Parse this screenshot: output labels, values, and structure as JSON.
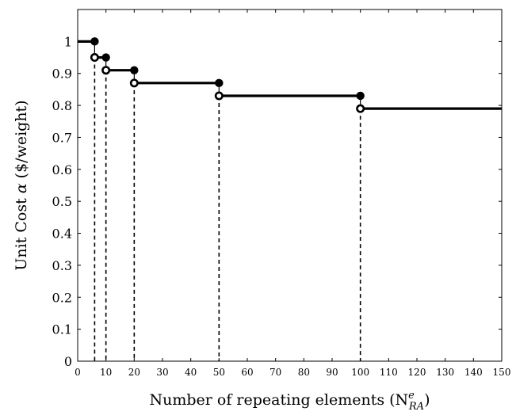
{
  "chart_data": {
    "type": "line",
    "title": "",
    "xlabel": "Number of repeating elements (N",
    "xlabel_sup": "e",
    "xlabel_sub": "RA",
    "xlabel_close": ")",
    "ylabel_prefix": "Unit Cost ",
    "ylabel_symbol": "α",
    "ylabel_suffix": " ($/weight)",
    "xlim": [
      0,
      150
    ],
    "ylim": [
      0,
      1.1
    ],
    "x_ticks": [
      0,
      10,
      20,
      30,
      40,
      50,
      60,
      70,
      80,
      90,
      100,
      110,
      120,
      130,
      140,
      150
    ],
    "x_tick_labels": [
      "0",
      "10",
      "20",
      "30",
      "40",
      "50",
      "60",
      "70",
      "80",
      "90",
      "100",
      "110",
      "120",
      "130",
      "140",
      "150"
    ],
    "y_ticks": [
      0,
      0.1,
      0.2,
      0.3,
      0.4,
      0.5,
      0.6,
      0.7,
      0.8,
      0.9,
      1.0
    ],
    "y_tick_labels": [
      "0",
      "0.1",
      "0.2",
      "0.3",
      "0.4",
      "0.5",
      "0.6",
      "0.7",
      "0.8",
      "0.9",
      "1"
    ],
    "grid": false,
    "legend": "none",
    "color": "#000000",
    "steps": [
      {
        "x_start": 0,
        "x_end": 6,
        "y": 1.0
      },
      {
        "x_start": 6,
        "x_end": 10,
        "y": 0.95
      },
      {
        "x_start": 10,
        "x_end": 20,
        "y": 0.91
      },
      {
        "x_start": 20,
        "x_end": 50,
        "y": 0.87
      },
      {
        "x_start": 50,
        "x_end": 100,
        "y": 0.83
      },
      {
        "x_start": 100,
        "x_end": 150,
        "y": 0.79
      }
    ],
    "breakpoints": [
      {
        "x": 6,
        "y_closed": 1.0,
        "y_open": 0.95
      },
      {
        "x": 10,
        "y_closed": 0.95,
        "y_open": 0.91
      },
      {
        "x": 20,
        "y_closed": 0.91,
        "y_open": 0.87
      },
      {
        "x": 50,
        "y_closed": 0.87,
        "y_open": 0.83
      },
      {
        "x": 100,
        "y_closed": 0.83,
        "y_open": 0.79
      }
    ]
  }
}
